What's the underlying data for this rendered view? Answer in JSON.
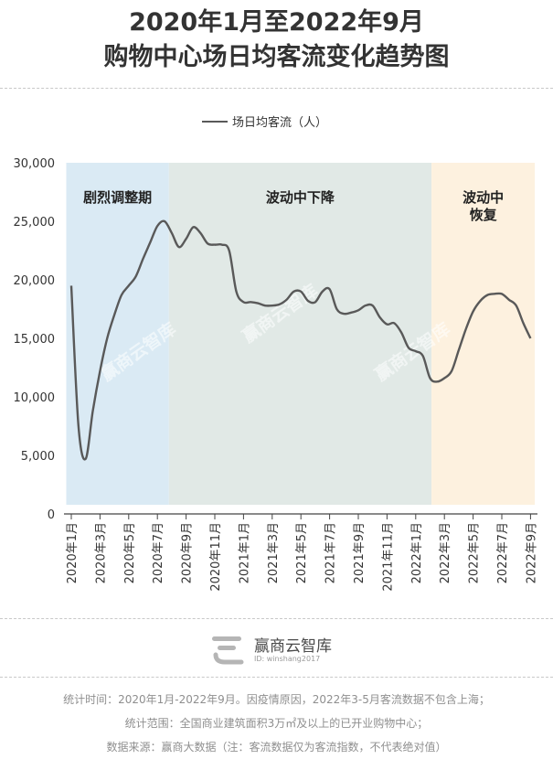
{
  "title_lines": [
    "2020年1月至2022年9月",
    "购物中心场日均客流变化趋势图"
  ],
  "chart_data": {
    "type": "line",
    "title": "2020年1月至2022年9月购物中心场日均客流变化趋势图",
    "xlabel": "",
    "ylabel": "",
    "ylim": [
      0,
      30000
    ],
    "yticks": [
      0,
      5000,
      10000,
      15000,
      20000,
      25000,
      30000
    ],
    "ytick_labels": [
      "0",
      "5,000",
      "10,000",
      "15,000",
      "20,000",
      "25,000",
      "30,000"
    ],
    "grid": false,
    "legend": "top-center",
    "x_tick_labels": [
      "2020年1月",
      "2020年3月",
      "2020年5月",
      "2020年7月",
      "2020年9月",
      "2020年11月",
      "2021年1月",
      "2021年3月",
      "2021年5月",
      "2021年7月",
      "2021年9月",
      "2021年11月",
      "2022年1月",
      "2022年3月",
      "2022年5月",
      "2022年7月",
      "2022年9月"
    ],
    "series": [
      {
        "name": "场日均客流（人）",
        "color": "#595959",
        "x": [
          0,
          0.5,
          1,
          1.5,
          2,
          2.5,
          3,
          3.5,
          4,
          4.5,
          5,
          5.5,
          6,
          6.5,
          7,
          7.5,
          8,
          8.5,
          9,
          9.5,
          10,
          10.5,
          11,
          11.5,
          12,
          12.5,
          13,
          13.5,
          14,
          14.5,
          15,
          15.5,
          16,
          16.5,
          17,
          17.5,
          18,
          18.5,
          19,
          19.5,
          20,
          20.5,
          21,
          21.5,
          22,
          22.5,
          23,
          23.5,
          24,
          24.5,
          25,
          25.5,
          26,
          26.5,
          27,
          27.5,
          28,
          28.5,
          29,
          29.5,
          30,
          30.5,
          31,
          31.5,
          32
        ],
        "values": [
          19500,
          7500,
          4700,
          8800,
          12200,
          15000,
          17000,
          18700,
          19500,
          20300,
          21800,
          23200,
          24600,
          25000,
          24000,
          22800,
          23500,
          24500,
          24000,
          23100,
          23000,
          23000,
          22500,
          19000,
          18100,
          18100,
          18000,
          17800,
          17800,
          17900,
          18300,
          19000,
          19000,
          18200,
          18100,
          19000,
          19200,
          17500,
          17100,
          17200,
          17400,
          17800,
          17800,
          16800,
          16200,
          16300,
          15500,
          14200,
          13900,
          13500,
          11600,
          11300,
          11600,
          12200,
          14000,
          15800,
          17300,
          18200,
          18700,
          18800,
          18800,
          18300,
          17800,
          16300,
          15000
        ]
      }
    ],
    "phases": [
      {
        "label": "剧烈调整期",
        "start": -0.35,
        "end": 6.8,
        "color": "#daeaf4"
      },
      {
        "label": "波动中下降",
        "start": 6.8,
        "end": 25.1,
        "color": "#e1e9e6"
      },
      {
        "label": "波动中\n恢复",
        "start": 25.1,
        "end": 32.3,
        "color": "#fdf1df"
      }
    ]
  },
  "watermarks": [
    "赢商云智库",
    "赢商云智库",
    "赢商云智库"
  ],
  "brand": {
    "name": "赢商云智库",
    "id": "ID: winshang2017"
  },
  "notes": [
    "统计时间：2020年1月-2022年9月。因疫情原因，2022年3-5月客流数据不包含上海；",
    "统计范围：全国商业建筑面积3万㎡及以上的已开业购物中心；",
    "数据来源：赢商大数据（注：客流数据仅为客流指数，不代表绝对值）"
  ]
}
